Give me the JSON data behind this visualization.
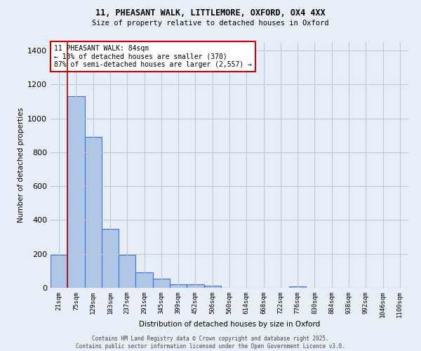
{
  "title_line1": "11, PHEASANT WALK, LITTLEMORE, OXFORD, OX4 4XX",
  "title_line2": "Size of property relative to detached houses in Oxford",
  "xlabel": "Distribution of detached houses by size in Oxford",
  "ylabel": "Number of detached properties",
  "bin_labels": [
    "21sqm",
    "75sqm",
    "129sqm",
    "183sqm",
    "237sqm",
    "291sqm",
    "345sqm",
    "399sqm",
    "452sqm",
    "506sqm",
    "560sqm",
    "614sqm",
    "668sqm",
    "722sqm",
    "776sqm",
    "830sqm",
    "884sqm",
    "938sqm",
    "992sqm",
    "1046sqm",
    "1100sqm"
  ],
  "bar_values": [
    195,
    1130,
    890,
    350,
    195,
    90,
    55,
    22,
    20,
    12,
    0,
    0,
    0,
    0,
    10,
    0,
    0,
    0,
    0,
    0,
    0
  ],
  "bar_color": "#aec6e8",
  "bar_edge_color": "#4472c4",
  "background_color": "#e8eef8",
  "grid_color": "#c0c8d8",
  "red_line_x": 0.5,
  "annotation_text": "11 PHEASANT WALK: 84sqm\n← 13% of detached houses are smaller (370)\n87% of semi-detached houses are larger (2,557) →",
  "annotation_box_color": "#ffffff",
  "annotation_box_edge": "#cc0000",
  "ylim": [
    0,
    1450
  ],
  "yticks": [
    0,
    200,
    400,
    600,
    800,
    1000,
    1200,
    1400
  ],
  "footer_line1": "Contains HM Land Registry data © Crown copyright and database right 2025.",
  "footer_line2": "Contains public sector information licensed under the Open Government Licence v3.0."
}
